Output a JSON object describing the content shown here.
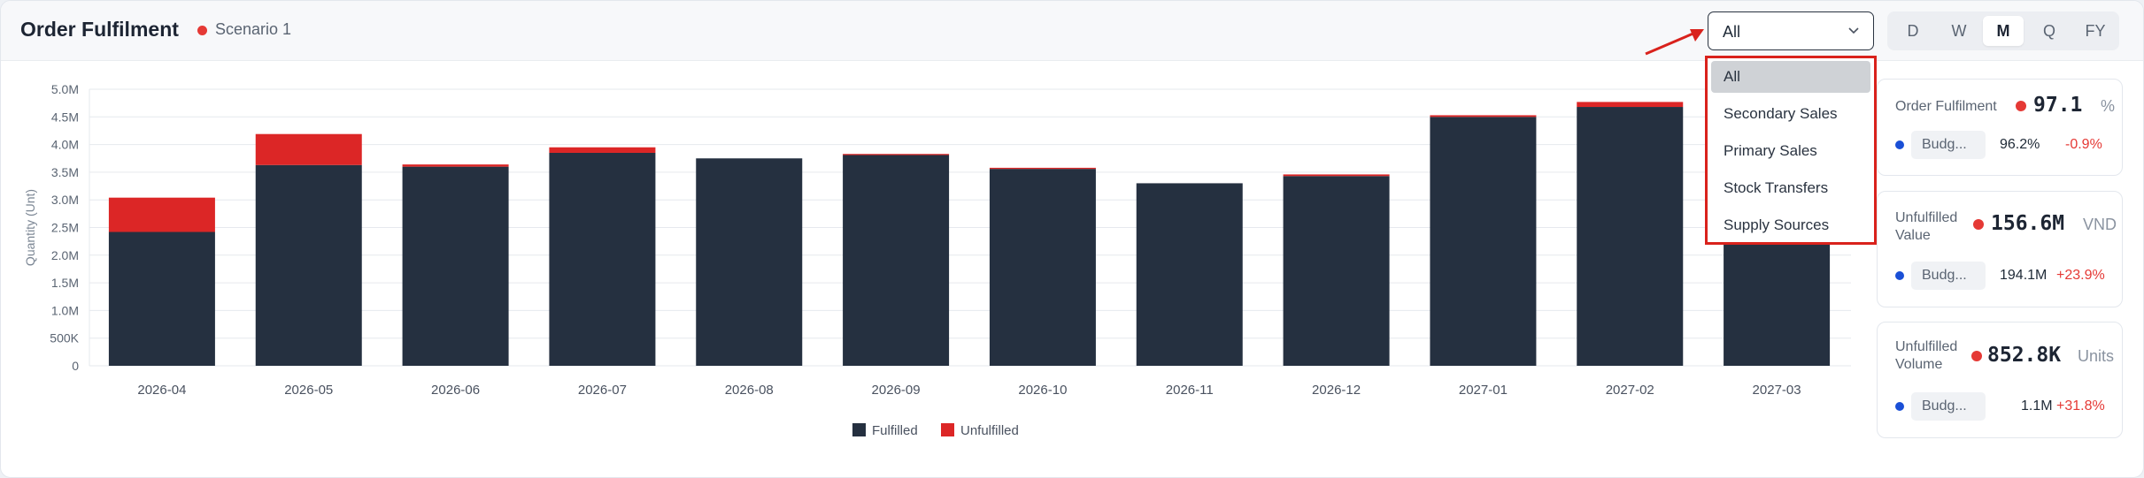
{
  "header": {
    "title": "Order Fulfilment",
    "scenario": "Scenario 1"
  },
  "filter": {
    "selected": "All",
    "options": [
      "All",
      "Secondary Sales",
      "Primary Sales",
      "Stock Transfers",
      "Supply Sources"
    ]
  },
  "period_tabs": [
    {
      "label": "D",
      "active": false
    },
    {
      "label": "W",
      "active": false
    },
    {
      "label": "M",
      "active": true
    },
    {
      "label": "Q",
      "active": false
    },
    {
      "label": "FY",
      "active": false
    }
  ],
  "colors": {
    "fulfilled": "#253040",
    "unfulfilled": "#dc2626",
    "accent_red": "#e53935",
    "budget_dot": "#1a4fd6"
  },
  "chart_data": {
    "type": "bar",
    "stacked": true,
    "categories": [
      "2026-04",
      "2026-05",
      "2026-06",
      "2026-07",
      "2026-08",
      "2026-09",
      "2026-10",
      "2026-11",
      "2026-12",
      "2027-01",
      "2027-02",
      "2027-03"
    ],
    "series": [
      {
        "name": "Fulfilled",
        "values": [
          2.42,
          3.63,
          3.6,
          3.85,
          3.75,
          3.81,
          3.56,
          3.3,
          3.43,
          4.5,
          4.68,
          3.2
        ]
      },
      {
        "name": "Unfulfilled",
        "values": [
          0.62,
          0.56,
          0.04,
          0.1,
          0.0,
          0.02,
          0.02,
          0.0,
          0.03,
          0.03,
          0.09,
          0.0
        ]
      }
    ],
    "ylabel": "Quantity (Unt)",
    "ylim": [
      0,
      5.0
    ],
    "yticks": [
      "0",
      "500K",
      "1.0M",
      "1.5M",
      "2.0M",
      "2.5M",
      "3.0M",
      "3.5M",
      "4.0M",
      "4.5M",
      "5.0M"
    ],
    "legend_position": "bottom-center",
    "grid": true
  },
  "kpis": [
    {
      "label": "Order Fulfilment",
      "value": "97.1",
      "unit": "%",
      "budget_label": "Budg...",
      "budget_value": "96.2%",
      "delta": "-0.9%"
    },
    {
      "label": "Unfulfilled Value",
      "value": "156.6M",
      "unit": "VND",
      "budget_label": "Budg...",
      "budget_value": "194.1M",
      "delta": "+23.9%"
    },
    {
      "label": "Unfulfilled Volume",
      "value": "852.8K",
      "unit": "Units",
      "budget_label": "Budg...",
      "budget_value": "1.1M",
      "delta": "+31.8%"
    }
  ]
}
